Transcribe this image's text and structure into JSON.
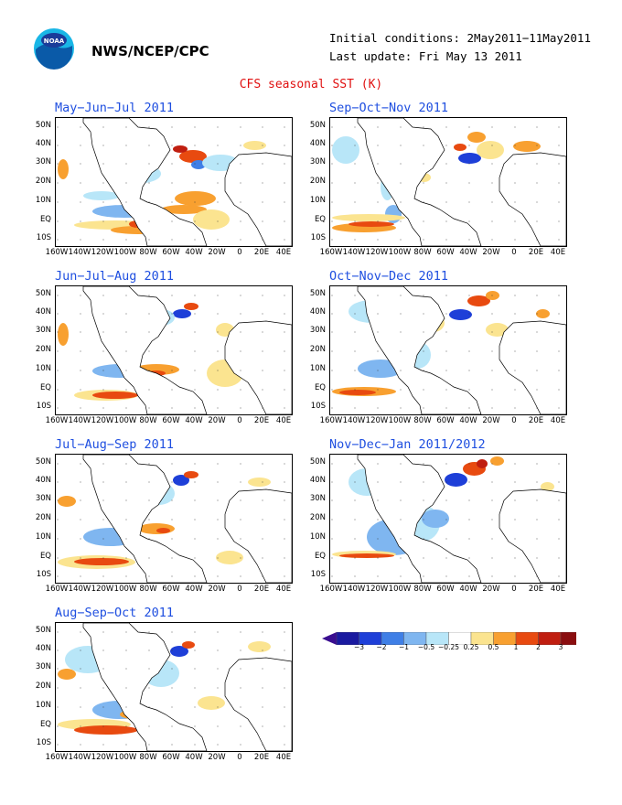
{
  "header": {
    "agency": "NWS/NCEP/CPC",
    "initial_conditions": "Initial conditions: 2May2011−11May2011",
    "last_update": "Last update: Fri May 13 2011",
    "title": "CFS seasonal SST (K)",
    "logo_text": "NOAA"
  },
  "axes": {
    "lat_labels": [
      "50N",
      "40N",
      "30N",
      "20N",
      "10N",
      "EQ",
      "10S"
    ],
    "lon_labels": [
      "160W",
      "140W",
      "120W",
      "100W",
      "80W",
      "60W",
      "40W",
      "20W",
      "0",
      "20E",
      "40E"
    ]
  },
  "panels": [
    {
      "title": "May−Jun−Jul 2011"
    },
    {
      "title": "Sep−Oct−Nov 2011"
    },
    {
      "title": "Jun−Jul−Aug 2011"
    },
    {
      "title": "Oct−Nov−Dec 2011"
    },
    {
      "title": "Jul−Aug−Sep 2011"
    },
    {
      "title": "Nov−Dec−Jan 2011/2012"
    },
    {
      "title": "Aug−Sep−Oct 2011"
    }
  ],
  "colorbar": {
    "labels": [
      "−3",
      "−2",
      "−1",
      "−0.5",
      "−0.25",
      "0.25",
      "0.5",
      "1",
      "2",
      "3"
    ],
    "colors": [
      "#1a1aa0",
      "#1e3fd8",
      "#3f7fe6",
      "#7fb6f0",
      "#b8e6f8",
      "#ffffff",
      "#fbe490",
      "#f8a030",
      "#e84a10",
      "#c01e10",
      "#8a0e10"
    ],
    "end_colors": {
      "low": "#3a0e90",
      "high": "#7a4a40"
    }
  }
}
